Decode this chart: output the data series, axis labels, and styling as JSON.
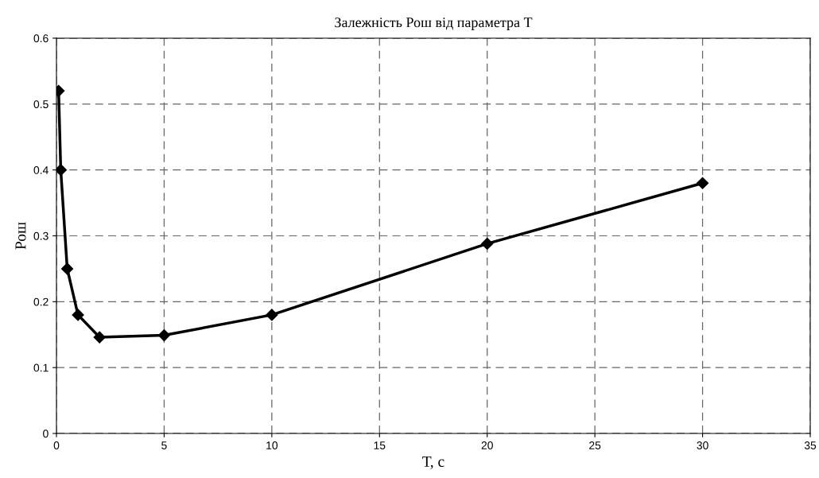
{
  "chart_data": {
    "type": "line",
    "title": "Залежність Рош від параметра Т",
    "xlabel": "Т, с",
    "ylabel": "Рош",
    "x": [
      0.1,
      0.2,
      0.5,
      1,
      2,
      5,
      10,
      20,
      30
    ],
    "series": [
      {
        "color": "#000000",
        "values": [
          0.52,
          0.4,
          0.25,
          0.18,
          0.146,
          0.149,
          0.18,
          0.288,
          0.38
        ]
      }
    ],
    "xlim": [
      0,
      35
    ],
    "xticks": [
      0,
      5,
      10,
      15,
      20,
      25,
      30,
      35
    ],
    "ylim": [
      0,
      0.6
    ],
    "yticks": [
      0,
      0.1,
      0.2,
      0.3,
      0.4,
      0.5,
      0.6
    ],
    "grid": true,
    "marker": "diamond",
    "line_style": "solid",
    "legend": false
  }
}
